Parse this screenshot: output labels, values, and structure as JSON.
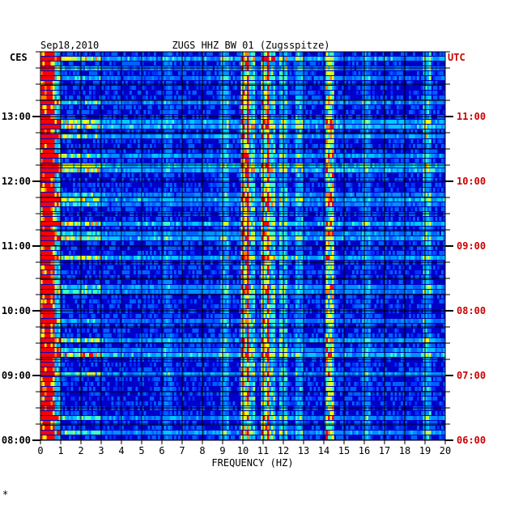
{
  "chart_data": {
    "type": "heatmap",
    "title": "ZUGS HHZ BW 01 (Zugsspitze)",
    "date": "Sep18,2010",
    "xlabel": "FREQUENCY (HZ)",
    "xlim": [
      0,
      20
    ],
    "x_ticks": [
      "0",
      "1",
      "2",
      "3",
      "4",
      "5",
      "6",
      "7",
      "8",
      "9",
      "10",
      "11",
      "12",
      "13",
      "14",
      "15",
      "16",
      "17",
      "18",
      "19",
      "20"
    ],
    "left_axis_label": "CES",
    "right_axis_label": "UTC",
    "left_ticks": [
      "13:00",
      "12:00",
      "11:00",
      "10:00",
      "09:00",
      "08:00"
    ],
    "right_ticks": [
      "11:00",
      "10:00",
      "09:00",
      "08:00",
      "07:00",
      "06:00"
    ],
    "time_range_ces": [
      "08:00",
      "13:35"
    ],
    "colors": {
      "low": "#0000c8",
      "mid": "#00c8ff",
      "high": "#ffff00",
      "max": "#ff0000",
      "utc_label": "#cc0000",
      "grid": "#000000"
    },
    "notable_frequency_lines_hz": [
      10.1,
      11.1,
      14.3
    ],
    "footer_mark": "*"
  }
}
